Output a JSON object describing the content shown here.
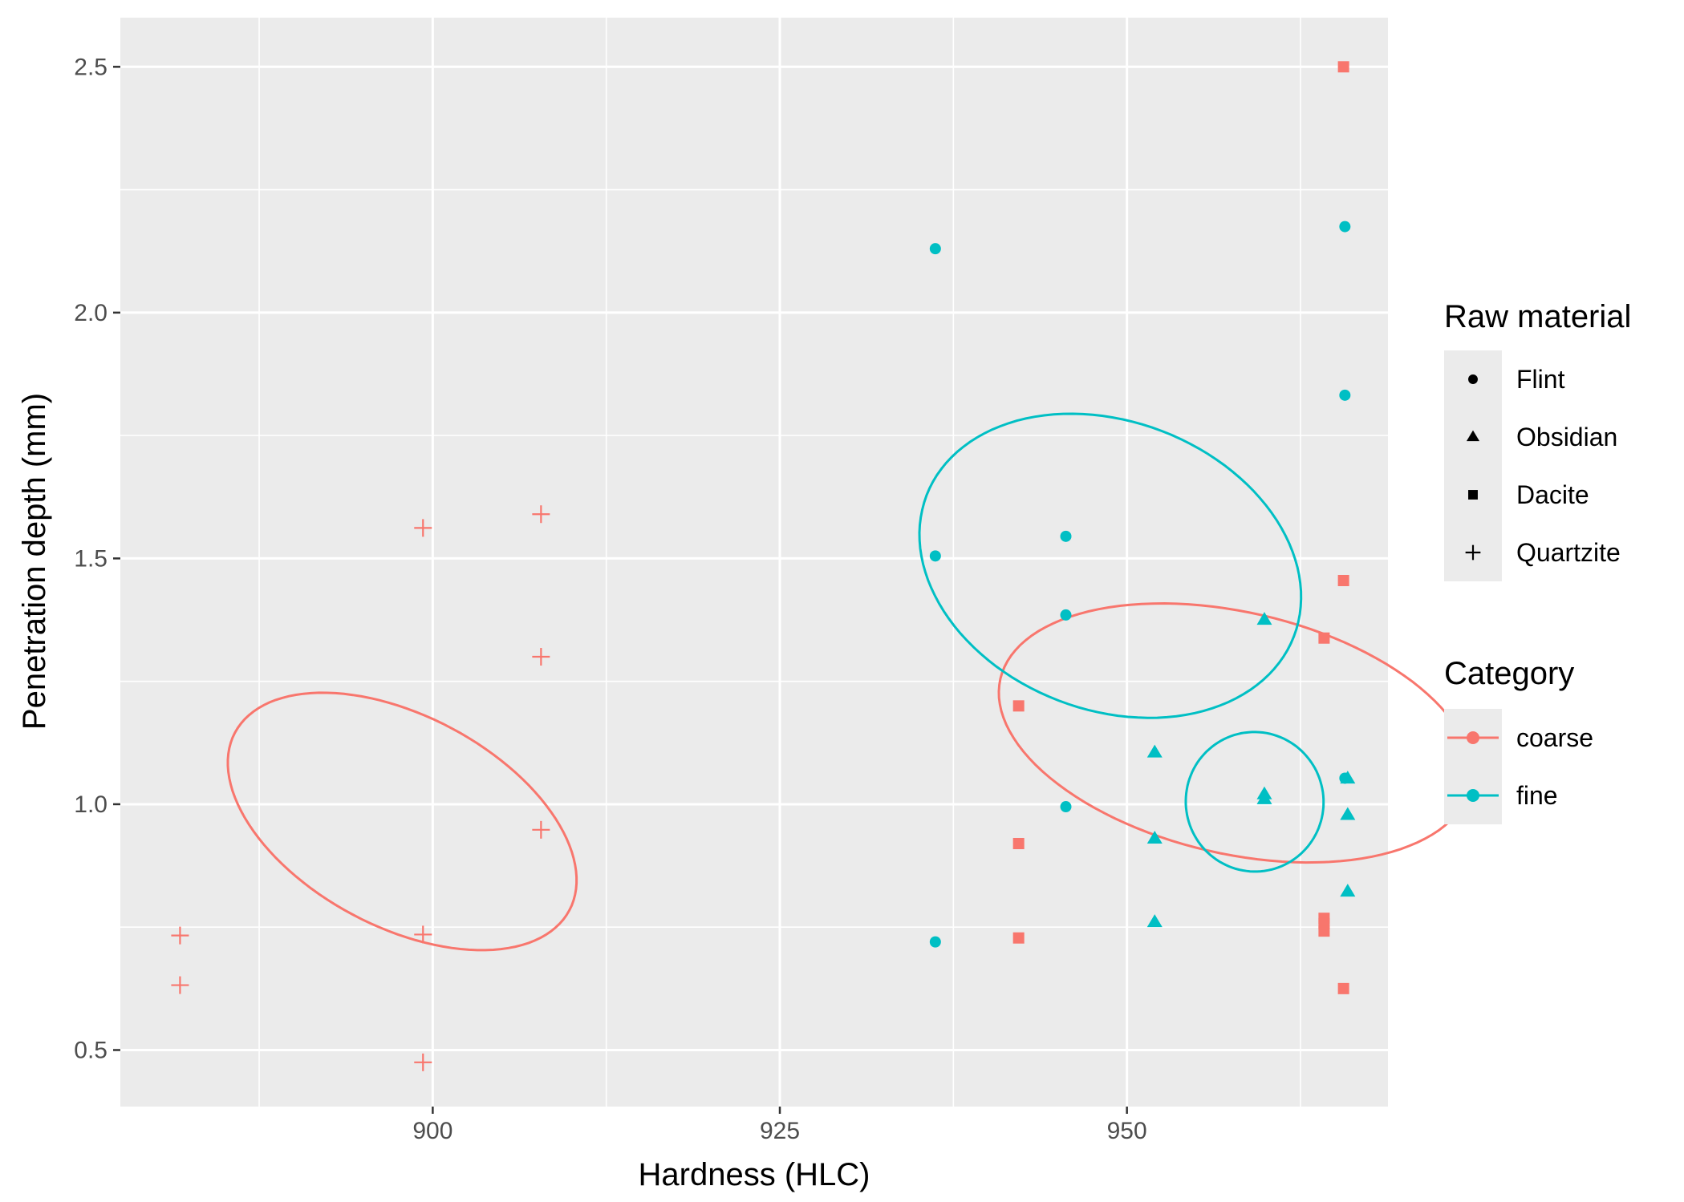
{
  "chart_data": {
    "type": "scatter",
    "xlabel": "Hardness (HLC)",
    "ylabel": "Penetration depth (mm)",
    "xlim": [
      877.5,
      968.8
    ],
    "ylim": [
      0.385,
      2.6
    ],
    "x_ticks": [
      900,
      925,
      950
    ],
    "x_minor_ticks": [
      887.5,
      912.5,
      937.5,
      962.5
    ],
    "y_ticks": [
      0.5,
      1.0,
      1.5,
      2.0,
      2.5
    ],
    "y_minor_ticks": [
      0.75,
      1.25,
      1.75,
      2.25
    ],
    "x_tick_labels": [
      "900",
      "925",
      "950"
    ],
    "y_tick_labels": [
      "0.5",
      "1.0",
      "1.5",
      "2.0",
      "2.5"
    ],
    "grid": true,
    "panel_background": "#ebebeb",
    "grid_color": "#ffffff",
    "legend_position": "right",
    "category_colors": {
      "coarse": "#f8766d",
      "fine": "#00bfc4"
    },
    "legends": {
      "shape": {
        "title": "Raw material",
        "entries": [
          {
            "label": "Flint",
            "shape": "circle"
          },
          {
            "label": "Obsidian",
            "shape": "triangle"
          },
          {
            "label": "Dacite",
            "shape": "square"
          },
          {
            "label": "Quartzite",
            "shape": "plus"
          }
        ]
      },
      "color": {
        "title": "Category",
        "entries": [
          {
            "label": "coarse",
            "color": "#f8766d"
          },
          {
            "label": "fine",
            "color": "#00bfc4"
          }
        ]
      }
    },
    "series": [
      {
        "material": "Flint",
        "category": "fine",
        "shape": "circle",
        "x": [
          936.2,
          936.2,
          936.2,
          945.6,
          945.6,
          945.6,
          965.7,
          965.7,
          965.7
        ],
        "y": [
          2.13,
          1.505,
          0.72,
          1.545,
          1.385,
          0.995,
          2.175,
          1.832,
          1.053
        ]
      },
      {
        "material": "Obsidian",
        "category": "fine",
        "shape": "triangle",
        "x": [
          952.0,
          952.0,
          952.0,
          959.9,
          959.9,
          959.9,
          965.9,
          965.9,
          965.9
        ],
        "y": [
          1.105,
          0.93,
          0.76,
          1.375,
          1.02,
          1.01,
          1.052,
          0.978,
          0.822
        ]
      },
      {
        "material": "Dacite",
        "category": "coarse",
        "shape": "square",
        "x": [
          942.2,
          942.2,
          942.2,
          964.2,
          964.2,
          964.2,
          964.2,
          965.6,
          965.6,
          965.6
        ],
        "y": [
          1.2,
          0.92,
          0.728,
          1.338,
          0.768,
          0.757,
          0.742,
          2.5,
          1.455,
          0.625
        ]
      },
      {
        "material": "Quartzite",
        "category": "coarse",
        "shape": "plus",
        "x": [
          881.8,
          881.8,
          899.3,
          899.3,
          899.3,
          907.8,
          907.8,
          907.8
        ],
        "y": [
          0.733,
          0.632,
          1.562,
          0.735,
          0.475,
          1.59,
          1.3,
          0.948
        ]
      }
    ],
    "ellipses": [
      {
        "category": "coarse",
        "cx": 897.8,
        "cy": 0.965,
        "rx": 7.6,
        "ry": 0.385,
        "rotation_deg": 62
      },
      {
        "category": "coarse",
        "cx": 957.8,
        "cy": 1.145,
        "rx": 8.7,
        "ry": 0.49,
        "rotation_deg": 77
      },
      {
        "category": "fine",
        "cx": 948.8,
        "cy": 1.485,
        "rx": 10.4,
        "ry": 0.4,
        "rotation_deg": 69
      },
      {
        "category": "fine",
        "cx": 959.2,
        "cy": 1.005,
        "rx": 4.96,
        "ry": 0.142,
        "rotation_deg": 11
      }
    ]
  }
}
